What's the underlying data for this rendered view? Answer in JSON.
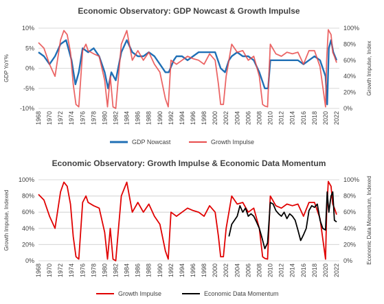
{
  "chart_data": [
    {
      "type": "line",
      "title": "Economic Observatory: GDP Nowcast & Growth Impulse",
      "ylabel": "GDP YoY%",
      "y2label": "Growth Impulse, Index",
      "ylim": [
        -10,
        10
      ],
      "y2lim": [
        0,
        100
      ],
      "yticks": [
        "10%",
        "5%",
        "0%",
        "-5%",
        "-10%"
      ],
      "y2ticks": [
        "100%",
        "80%",
        "60%",
        "40%",
        "20%",
        "0%"
      ],
      "xticks": [
        "1968",
        "1970",
        "1972",
        "1974",
        "1976",
        "1978",
        "1980",
        "1982",
        "1984",
        "1986",
        "1988",
        "1990",
        "1992",
        "1994",
        "1996",
        "1998",
        "2000",
        "2002",
        "2004",
        "2006",
        "2008",
        "2010",
        "2012",
        "2014",
        "2016",
        "2018",
        "2020",
        "2022"
      ],
      "xlim": [
        1968,
        2022.5
      ],
      "grid": true,
      "legend": "bottom",
      "series": [
        {
          "name": "GDP Nowcast",
          "axis": "left",
          "color": "#1f6fb5",
          "x": [
            1968,
            1969,
            1970,
            1971,
            1972,
            1973,
            1974,
            1974.7,
            1975.3,
            1976,
            1977,
            1978,
            1979,
            1980,
            1980.6,
            1981.2,
            1982,
            1983,
            1984,
            1985,
            1986,
            1987,
            1988,
            1989,
            1990,
            1991,
            1991.6,
            1992.5,
            1993,
            1994,
            1995,
            1996,
            1997,
            1998,
            1999,
            2000,
            2001,
            2001.8,
            2002.5,
            2003,
            2004,
            2005,
            2006,
            2007,
            2008,
            2009,
            2009.6,
            2010,
            2011,
            2012,
            2013,
            2014,
            2015,
            2016,
            2017,
            2018,
            2019,
            2020,
            2020.3,
            2020.6,
            2021,
            2021.4,
            2022
          ],
          "values": [
            4,
            3,
            1,
            3,
            6,
            7,
            2,
            -4,
            -1,
            5,
            4,
            5,
            3,
            -1,
            -5,
            -1,
            -3,
            4,
            7,
            4,
            3,
            3,
            4,
            3,
            1,
            -1,
            -1,
            2,
            3,
            3,
            2,
            3,
            4,
            4,
            4,
            4,
            0,
            -1,
            2,
            3,
            4,
            3,
            3,
            2,
            -1,
            -5,
            -5,
            2,
            2,
            2,
            2,
            2,
            2,
            1,
            2,
            3,
            2,
            -2,
            -9,
            5,
            7,
            4,
            2
          ]
        },
        {
          "name": "Growth Impulse",
          "axis": "right",
          "color": "#e84a4a",
          "x": [
            1968,
            1969,
            1970,
            1971,
            1972,
            1972.6,
            1973.2,
            1973.8,
            1974.3,
            1974.8,
            1975.3,
            1976,
            1976.6,
            1977,
            1978,
            1979,
            1980,
            1980.5,
            1981,
            1981.5,
            1982,
            1982.5,
            1983,
            1984,
            1985,
            1986,
            1987,
            1988,
            1989,
            1990,
            1991,
            1991.5,
            1992,
            1993,
            1994,
            1995,
            1996,
            1997,
            1998,
            1999,
            2000,
            2000.6,
            2001,
            2001.5,
            2002,
            2003,
            2004,
            2005,
            2006,
            2007,
            2008,
            2008.6,
            2009,
            2009.5,
            2010,
            2011,
            2012,
            2013,
            2014,
            2015,
            2016,
            2017,
            2018,
            2019,
            2020,
            2020.2,
            2020.5,
            2021,
            2021.3,
            2021.6,
            2022
          ],
          "values": [
            82,
            75,
            55,
            40,
            85,
            97,
            92,
            70,
            30,
            5,
            2,
            72,
            80,
            72,
            68,
            65,
            35,
            2,
            40,
            2,
            0,
            40,
            80,
            97,
            60,
            72,
            60,
            70,
            55,
            45,
            12,
            2,
            60,
            55,
            60,
            65,
            62,
            60,
            55,
            68,
            60,
            30,
            5,
            5,
            40,
            80,
            70,
            72,
            60,
            65,
            40,
            5,
            3,
            2,
            80,
            68,
            65,
            70,
            68,
            70,
            55,
            72,
            72,
            52,
            2,
            60,
            98,
            92,
            70,
            65,
            57
          ]
        }
      ]
    },
    {
      "type": "line",
      "title": "Economic Observatory: Growth Impulse & Economic Data Momentum",
      "ylabel": "Growth Impulse, Indexed",
      "y2label": "Economic Data Momentum, Indexed",
      "ylim": [
        0,
        100
      ],
      "y2lim": [
        0,
        100
      ],
      "yticks": [
        "100%",
        "80%",
        "60%",
        "40%",
        "20%",
        "0%"
      ],
      "y2ticks": [
        "100%",
        "80%",
        "60%",
        "40%",
        "20%",
        "0%"
      ],
      "xticks": [
        "1968",
        "1970",
        "1972",
        "1974",
        "1976",
        "1978",
        "1980",
        "1982",
        "1984",
        "1986",
        "1988",
        "1990",
        "1992",
        "1994",
        "1996",
        "1998",
        "2000",
        "2002",
        "2004",
        "2006",
        "2008",
        "2010",
        "2012",
        "2014",
        "2016",
        "2018",
        "2020",
        "2022"
      ],
      "xlim": [
        1968,
        2022.5
      ],
      "grid": true,
      "legend": "bottom",
      "series": [
        {
          "name": "Growth Impulse",
          "axis": "left",
          "color": "#e00000",
          "x": [
            1968,
            1969,
            1970,
            1971,
            1972,
            1972.6,
            1973.2,
            1973.8,
            1974.3,
            1974.8,
            1975.3,
            1976,
            1976.6,
            1977,
            1978,
            1979,
            1980,
            1980.5,
            1981,
            1981.5,
            1982,
            1982.5,
            1983,
            1984,
            1985,
            1986,
            1987,
            1988,
            1989,
            1990,
            1991,
            1991.5,
            1992,
            1993,
            1994,
            1995,
            1996,
            1997,
            1998,
            1999,
            2000,
            2000.6,
            2001,
            2001.5,
            2002,
            2003,
            2004,
            2005,
            2006,
            2007,
            2008,
            2008.6,
            2009,
            2009.5,
            2010,
            2011,
            2012,
            2013,
            2014,
            2015,
            2016,
            2017,
            2018,
            2019,
            2020,
            2020.2,
            2020.5,
            2021,
            2021.3,
            2021.6,
            2022
          ],
          "values": [
            82,
            75,
            55,
            40,
            85,
            97,
            92,
            70,
            30,
            5,
            2,
            72,
            80,
            72,
            68,
            65,
            35,
            2,
            40,
            2,
            0,
            40,
            80,
            97,
            60,
            72,
            60,
            70,
            55,
            45,
            12,
            2,
            60,
            55,
            60,
            65,
            62,
            60,
            55,
            68,
            60,
            30,
            5,
            5,
            40,
            80,
            70,
            72,
            60,
            65,
            40,
            5,
            3,
            2,
            80,
            68,
            65,
            70,
            68,
            70,
            55,
            72,
            72,
            52,
            2,
            60,
            98,
            92,
            70,
            65,
            57
          ]
        },
        {
          "name": "Economic Data Momentum",
          "axis": "right",
          "color": "#000000",
          "x": [
            2002.5,
            2003,
            2003.5,
            2004,
            2004.5,
            2005,
            2005.5,
            2006,
            2006.5,
            2007,
            2007.5,
            2008,
            2008.5,
            2009,
            2009.5,
            2010,
            2010.5,
            2011,
            2011.5,
            2012,
            2012.5,
            2013,
            2013.5,
            2014,
            2014.5,
            2015,
            2015.5,
            2016,
            2016.5,
            2017,
            2017.5,
            2018,
            2018.5,
            2019,
            2019.5,
            2020,
            2020.3,
            2020.6,
            2021,
            2021.3,
            2021.6,
            2022
          ],
          "values": [
            30,
            45,
            50,
            55,
            68,
            60,
            65,
            55,
            58,
            55,
            48,
            40,
            28,
            15,
            22,
            72,
            70,
            62,
            58,
            55,
            60,
            52,
            58,
            55,
            50,
            38,
            25,
            32,
            40,
            62,
            68,
            66,
            70,
            50,
            40,
            38,
            85,
            60,
            80,
            85,
            50,
            48
          ]
        }
      ]
    }
  ]
}
